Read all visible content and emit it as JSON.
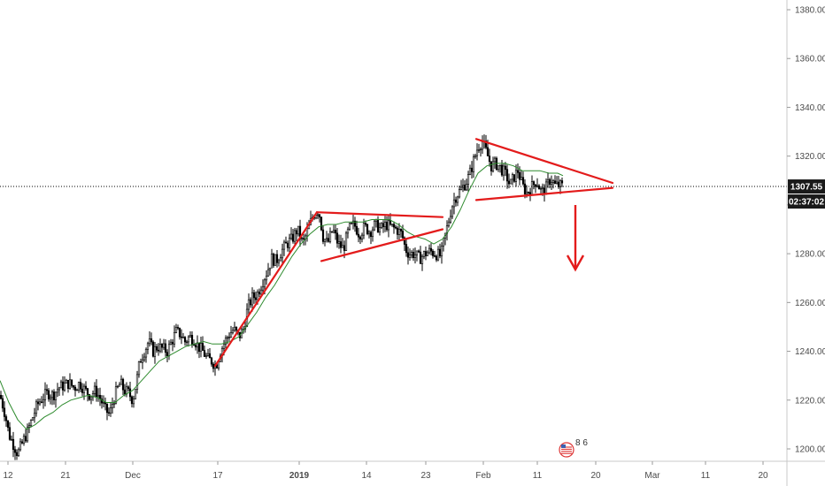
{
  "chart_data": {
    "type": "candlestick",
    "title": "",
    "xlabel": "",
    "ylabel": "",
    "ylim": [
      1196,
      1383
    ],
    "grid": false,
    "legend": "none",
    "y_ticks": [
      "1380.00",
      "1360.00",
      "1340.00",
      "1320.00",
      "1300.00",
      "1280.00",
      "1260.00",
      "1240.00",
      "1220.00",
      "1200.00"
    ],
    "x_ticks": [
      {
        "label": "12",
        "bold": false
      },
      {
        "label": "21",
        "bold": false
      },
      {
        "label": "Dec",
        "bold": false
      },
      {
        "label": "17",
        "bold": false
      },
      {
        "label": "2019",
        "bold": true
      },
      {
        "label": "14",
        "bold": false
      },
      {
        "label": "23",
        "bold": false
      },
      {
        "label": "Feb",
        "bold": false
      },
      {
        "label": "11",
        "bold": false
      },
      {
        "label": "20",
        "bold": false
      },
      {
        "label": "Mar",
        "bold": false
      },
      {
        "label": "11",
        "bold": false
      },
      {
        "label": "20",
        "bold": false
      }
    ],
    "price_path": [
      [
        0,
        1222
      ],
      [
        6,
        1214
      ],
      [
        10,
        1206
      ],
      [
        15,
        1202
      ],
      [
        20,
        1198
      ],
      [
        26,
        1203
      ],
      [
        31,
        1207
      ],
      [
        36,
        1212
      ],
      [
        42,
        1218
      ],
      [
        48,
        1221
      ],
      [
        54,
        1223
      ],
      [
        60,
        1222
      ],
      [
        66,
        1225
      ],
      [
        72,
        1226
      ],
      [
        78,
        1227
      ],
      [
        84,
        1225
      ],
      [
        90,
        1227
      ],
      [
        96,
        1224
      ],
      [
        102,
        1222
      ],
      [
        108,
        1224
      ],
      [
        114,
        1220
      ],
      [
        119,
        1216
      ],
      [
        124,
        1214
      ],
      [
        128,
        1220
      ],
      [
        132,
        1224
      ],
      [
        136,
        1227
      ],
      [
        140,
        1224
      ],
      [
        145,
        1223
      ],
      [
        150,
        1220
      ],
      [
        154,
        1227
      ],
      [
        158,
        1236
      ],
      [
        163,
        1240
      ],
      [
        168,
        1244
      ],
      [
        173,
        1240
      ],
      [
        178,
        1242
      ],
      [
        184,
        1241
      ],
      [
        189,
        1240
      ],
      [
        194,
        1244
      ],
      [
        199,
        1248
      ],
      [
        204,
        1247
      ],
      [
        209,
        1244
      ],
      [
        214,
        1246
      ],
      [
        219,
        1245
      ],
      [
        224,
        1242
      ],
      [
        229,
        1240
      ],
      [
        234,
        1237
      ],
      [
        239,
        1236
      ],
      [
        244,
        1234
      ],
      [
        249,
        1240
      ],
      [
        254,
        1244
      ],
      [
        259,
        1247
      ],
      [
        264,
        1249
      ],
      [
        270,
        1246
      ],
      [
        275,
        1249
      ],
      [
        280,
        1258
      ],
      [
        285,
        1262
      ],
      [
        290,
        1263
      ],
      [
        296,
        1268
      ],
      [
        302,
        1273
      ],
      [
        307,
        1278
      ],
      [
        312,
        1277
      ],
      [
        318,
        1281
      ],
      [
        324,
        1284
      ],
      [
        330,
        1286
      ],
      [
        336,
        1290
      ],
      [
        342,
        1284
      ],
      [
        348,
        1290
      ],
      [
        354,
        1296
      ],
      [
        360,
        1298
      ],
      [
        365,
        1287
      ],
      [
        370,
        1284
      ],
      [
        376,
        1290
      ],
      [
        382,
        1284
      ],
      [
        388,
        1282
      ],
      [
        394,
        1290
      ],
      [
        400,
        1292
      ],
      [
        406,
        1288
      ],
      [
        412,
        1291
      ],
      [
        418,
        1289
      ],
      [
        424,
        1292
      ],
      [
        430,
        1290
      ],
      [
        436,
        1292
      ],
      [
        442,
        1291
      ],
      [
        448,
        1290
      ],
      [
        454,
        1288
      ],
      [
        458,
        1282
      ],
      [
        462,
        1280
      ],
      [
        468,
        1280
      ],
      [
        474,
        1278
      ],
      [
        480,
        1280
      ],
      [
        486,
        1281
      ],
      [
        492,
        1280
      ],
      [
        498,
        1279
      ],
      [
        502,
        1286
      ],
      [
        506,
        1292
      ],
      [
        510,
        1299
      ],
      [
        514,
        1303
      ],
      [
        518,
        1305
      ],
      [
        522,
        1307
      ],
      [
        526,
        1309
      ],
      [
        530,
        1312
      ],
      [
        535,
        1318
      ],
      [
        540,
        1324
      ],
      [
        545,
        1326
      ],
      [
        550,
        1321
      ],
      [
        555,
        1316
      ],
      [
        560,
        1317
      ],
      [
        566,
        1315
      ],
      [
        572,
        1312
      ],
      [
        576,
        1308
      ],
      [
        580,
        1311
      ],
      [
        585,
        1314
      ],
      [
        590,
        1308
      ],
      [
        595,
        1305
      ],
      [
        600,
        1307
      ],
      [
        606,
        1310
      ],
      [
        612,
        1305
      ],
      [
        617,
        1307
      ],
      [
        622,
        1311
      ],
      [
        627,
        1308
      ],
      [
        632,
        1308
      ],
      [
        636,
        1307.55
      ]
    ],
    "ma_path": [
      [
        0,
        1228
      ],
      [
        10,
        1219
      ],
      [
        20,
        1212
      ],
      [
        30,
        1208
      ],
      [
        40,
        1210
      ],
      [
        50,
        1213
      ],
      [
        60,
        1215
      ],
      [
        70,
        1218
      ],
      [
        80,
        1220
      ],
      [
        90,
        1221
      ],
      [
        100,
        1222
      ],
      [
        110,
        1221
      ],
      [
        120,
        1219
      ],
      [
        130,
        1219
      ],
      [
        140,
        1222
      ],
      [
        150,
        1224
      ],
      [
        160,
        1228
      ],
      [
        170,
        1232
      ],
      [
        180,
        1236
      ],
      [
        190,
        1238
      ],
      [
        200,
        1240
      ],
      [
        210,
        1242
      ],
      [
        220,
        1243
      ],
      [
        230,
        1244
      ],
      [
        240,
        1243
      ],
      [
        250,
        1243
      ],
      [
        260,
        1244
      ],
      [
        270,
        1246
      ],
      [
        280,
        1251
      ],
      [
        290,
        1256
      ],
      [
        300,
        1262
      ],
      [
        310,
        1267
      ],
      [
        320,
        1273
      ],
      [
        330,
        1279
      ],
      [
        340,
        1284
      ],
      [
        350,
        1288
      ],
      [
        360,
        1291
      ],
      [
        370,
        1292
      ],
      [
        380,
        1292
      ],
      [
        390,
        1293
      ],
      [
        400,
        1293
      ],
      [
        410,
        1293
      ],
      [
        420,
        1294
      ],
      [
        430,
        1294
      ],
      [
        440,
        1294
      ],
      [
        450,
        1292
      ],
      [
        460,
        1289
      ],
      [
        470,
        1287
      ],
      [
        480,
        1286
      ],
      [
        490,
        1284
      ],
      [
        500,
        1286
      ],
      [
        510,
        1291
      ],
      [
        520,
        1298
      ],
      [
        530,
        1306
      ],
      [
        540,
        1313
      ],
      [
        550,
        1316
      ],
      [
        560,
        1317
      ],
      [
        570,
        1317
      ],
      [
        580,
        1316
      ],
      [
        590,
        1314
      ],
      [
        600,
        1314
      ],
      [
        610,
        1314
      ],
      [
        620,
        1313
      ],
      [
        630,
        1313
      ],
      [
        636,
        1312
      ]
    ],
    "pattern_lines": [
      {
        "from": [
          243,
          1234
        ],
        "to": [
          358,
          1297
        ]
      },
      {
        "from": [
          358,
          1297
        ],
        "to": [
          500,
          1295
        ]
      },
      {
        "from": [
          363,
          1277
        ],
        "to": [
          500,
          1290
        ]
      },
      {
        "from": [
          538,
          1327
        ],
        "to": [
          692,
          1309
        ]
      },
      {
        "from": [
          538,
          1302
        ],
        "to": [
          692,
          1307
        ]
      }
    ],
    "current_price": "1307.55",
    "countdown": "02:37:02",
    "badge_text": "8 6"
  }
}
